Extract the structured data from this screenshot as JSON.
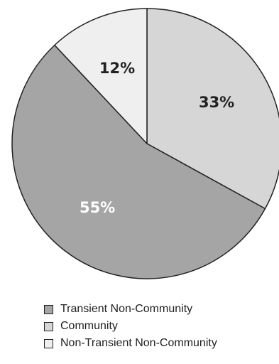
{
  "chart_data": {
    "type": "pie",
    "title": "",
    "slices": [
      {
        "label": "Community",
        "value": 33,
        "display": "33%",
        "color": "#d6d6d6",
        "label_color": "#222222"
      },
      {
        "label": "Transient Non-Community",
        "value": 55,
        "display": "55%",
        "color": "#a5a5a5",
        "label_color": "#ffffff"
      },
      {
        "label": "Non-Transient Non-Community",
        "value": 12,
        "display": "12%",
        "color": "#efefef",
        "label_color": "#222222"
      }
    ],
    "start_angle_deg": 0,
    "direction": "clockwise",
    "legend": {
      "placement": "bottom",
      "items": [
        "Transient Non-Community",
        "Community",
        "Non-Transient Non-Community"
      ]
    }
  }
}
